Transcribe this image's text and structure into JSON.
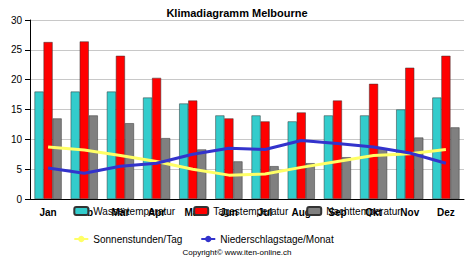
{
  "chart_data": {
    "type": "bar",
    "title": "Klimadiagramm Melbourne",
    "annotations": [
      "Copyright© www.iten-online.ch"
    ],
    "categories": [
      "Jan",
      "Feb",
      "Mär",
      "Apr",
      "Mai",
      "Jun",
      "Jul",
      "Aug",
      "Sep",
      "Okt",
      "Nov",
      "Dez"
    ],
    "series": [
      {
        "name": "Wassertemperatur",
        "type": "bar",
        "color": "#33cccc",
        "values": [
          18,
          18,
          18,
          17,
          16,
          14,
          14,
          13,
          14,
          14,
          15,
          17
        ]
      },
      {
        "name": "Tagestemperatur",
        "type": "bar",
        "color": "#ff0000",
        "values": [
          26.3,
          26.4,
          24,
          20.3,
          16.5,
          13.5,
          13,
          14.5,
          16.5,
          19.3,
          22,
          24
        ]
      },
      {
        "name": "Nachttemperatur",
        "type": "bar",
        "color": "#808080",
        "values": [
          13.5,
          14,
          12.7,
          10.2,
          8.3,
          6.3,
          5.5,
          6,
          7,
          8.5,
          10.3,
          12
        ]
      },
      {
        "name": "Sonnenstunden/Tag",
        "type": "line",
        "color": "#ffff66",
        "values": [
          8.7,
          8.2,
          7.3,
          6.3,
          5.0,
          4.0,
          4.2,
          5.3,
          6.3,
          7.3,
          7.6,
          8.3
        ]
      },
      {
        "name": "Niederschlagstage/Monat",
        "type": "line",
        "color": "#3333cc",
        "values": [
          5.2,
          4.3,
          5.5,
          6.0,
          7.5,
          8.5,
          8.3,
          9.8,
          9.3,
          8.7,
          7.7,
          6.0
        ]
      }
    ],
    "ylim": [
      0,
      30
    ],
    "yticks": [
      0,
      5,
      10,
      15,
      20,
      25,
      30
    ],
    "grid": true,
    "legend": "bottom"
  }
}
